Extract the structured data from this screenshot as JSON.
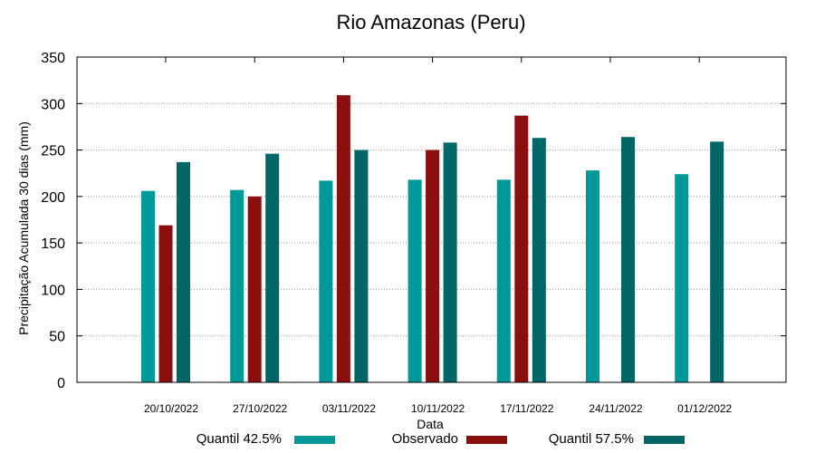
{
  "chart_data": {
    "type": "bar",
    "title": "Rio Amazonas (Peru)",
    "xlabel": "Data",
    "ylabel": "Precipitação Acumulada 30 dias (mm)",
    "ylim": [
      0,
      350
    ],
    "yticks": [
      0,
      50,
      100,
      150,
      200,
      250,
      300,
      350
    ],
    "grid": true,
    "legend_position": "bottom",
    "categories": [
      "20/10/2022",
      "27/10/2022",
      "03/11/2022",
      "10/11/2022",
      "17/11/2022",
      "24/11/2022",
      "01/12/2022"
    ],
    "series": [
      {
        "name": "Quantil 42.5%",
        "color": "#009999",
        "values": [
          206,
          207,
          217,
          218,
          218,
          228,
          224
        ]
      },
      {
        "name": "Observado",
        "color": "#8b0f0f",
        "values": [
          169,
          200,
          309,
          250,
          287,
          null,
          null
        ]
      },
      {
        "name": "Quantil 57.5%",
        "color": "#006666",
        "values": [
          237,
          246,
          250,
          258,
          263,
          264,
          259
        ]
      }
    ]
  }
}
